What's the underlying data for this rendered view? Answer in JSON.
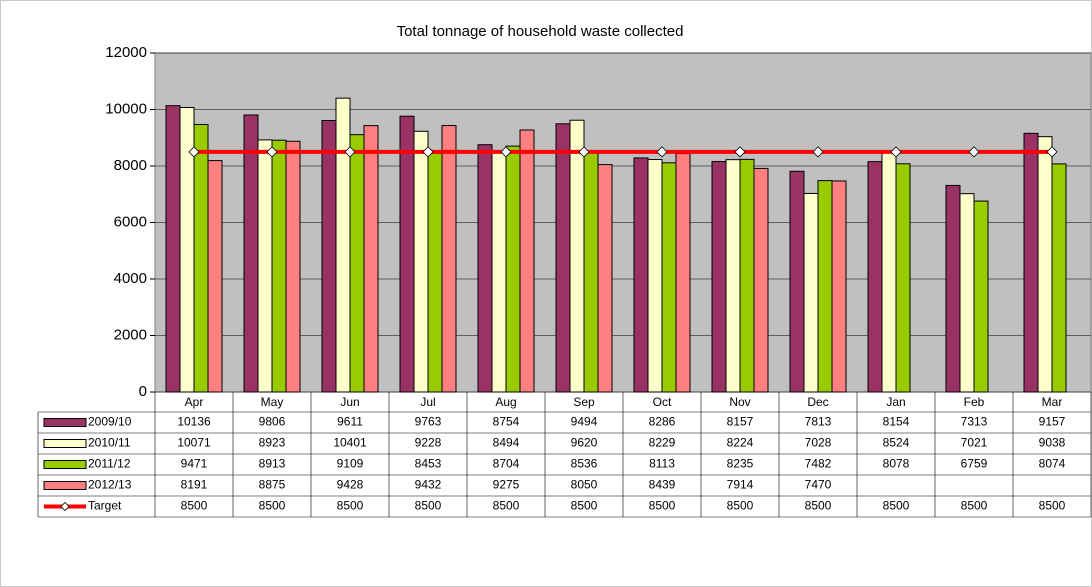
{
  "chart_data": {
    "type": "bar",
    "title": "Total tonnage of household waste collected",
    "categories": [
      "Apr",
      "May",
      "Jun",
      "Jul",
      "Aug",
      "Sep",
      "Oct",
      "Nov",
      "Dec",
      "Jan",
      "Feb",
      "Mar"
    ],
    "series": [
      {
        "name": "2009/10",
        "color": "#993366",
        "values": [
          10136,
          9806,
          9611,
          9763,
          8754,
          9494,
          8286,
          8157,
          7813,
          8154,
          7313,
          9157
        ]
      },
      {
        "name": "2010/11",
        "color": "#ffffcc",
        "values": [
          10071,
          8923,
          10401,
          9228,
          8494,
          9620,
          8229,
          8224,
          7028,
          8524,
          7021,
          9038
        ]
      },
      {
        "name": "2011/12",
        "color": "#99cc00",
        "values": [
          9471,
          8913,
          9109,
          8453,
          8704,
          8536,
          8113,
          8235,
          7482,
          8078,
          6759,
          8074
        ]
      },
      {
        "name": "2012/13",
        "color": "#ff8080",
        "values": [
          8191,
          8875,
          9428,
          9432,
          9275,
          8050,
          8439,
          7914,
          7470,
          null,
          null,
          null
        ]
      },
      {
        "name": "Target",
        "type": "line",
        "color": "#ff0000",
        "values": [
          8500,
          8500,
          8500,
          8500,
          8500,
          8500,
          8500,
          8500,
          8500,
          8500,
          8500,
          8500
        ]
      }
    ],
    "ylim": [
      0,
      12000
    ],
    "yticks": [
      0,
      2000,
      4000,
      6000,
      8000,
      10000,
      12000
    ],
    "grid": true,
    "data_table": true
  }
}
